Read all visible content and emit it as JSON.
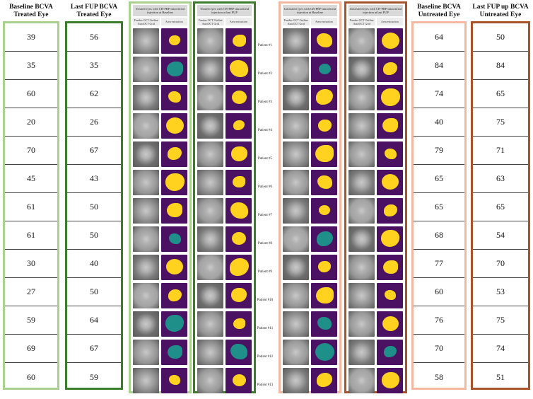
{
  "columns": {
    "baseline_treated": {
      "header_line1": "Baseline BCVA",
      "header_line2": "Treated Eye",
      "values": [
        "39",
        "35",
        "60",
        "20",
        "70",
        "45",
        "61",
        "61",
        "30",
        "27",
        "59",
        "69",
        "60"
      ]
    },
    "lastfup_treated": {
      "header_line1": "Last FUP BCVA",
      "header_line2": "Treated Eye",
      "values": [
        "56",
        "35",
        "62",
        "26",
        "67",
        "43",
        "50",
        "50",
        "40",
        "50",
        "64",
        "67",
        "59"
      ]
    },
    "baseline_untreated": {
      "header_line1": "Baseline BCVA",
      "header_line2": "Untreated Eye",
      "values": [
        "64",
        "84",
        "74",
        "40",
        "79",
        "65",
        "65",
        "68",
        "77",
        "60",
        "76",
        "70",
        "58"
      ]
    },
    "lastfup_untreated": {
      "header_line1": "Last FUP up BCVA",
      "header_line2": "Untreated Eye",
      "values": [
        "50",
        "84",
        "65",
        "75",
        "71",
        "63",
        "65",
        "54",
        "70",
        "53",
        "75",
        "74",
        "51"
      ]
    }
  },
  "image_panels": [
    {
      "title": "Treated eyes with CB-PRP intravitreal injection at Baseline",
      "sub_left": "Fundus OCT Outline AutoOCT Grid",
      "sub_right": "Area extraction",
      "border": "#a9d18e"
    },
    {
      "title": "Treated eyes with CB-PRP intravitreal injection at last FUP",
      "sub_left": "Fundus OCT Outline AutoOCT Grid",
      "sub_right": "Area extraction",
      "border": "#3a7d2a"
    },
    {
      "title": "Untreated eyes with CB-PRP intravitreal injection at Baseline",
      "sub_left": "Fundus OCT Outline AutoOCT Grid",
      "sub_right": "Area extraction",
      "border": "#f4b8a0"
    },
    {
      "title": "Untreated eyes with CB-PRP intravitreal injection at last FUP",
      "sub_left": "Fundus OCT Outline AutoOCT Grid",
      "sub_right": "Area extraction",
      "border": "#a9532a"
    }
  ],
  "patients": [
    "Patient #1",
    "Patient #2",
    "Patient #3",
    "Patient #4",
    "Patient #5",
    "Patient #6",
    "Patient #7",
    "Patient #8",
    "Patient #9",
    "Patient #10",
    "Patient #11",
    "Patient #12",
    "Patient #13"
  ],
  "mask_colors": {
    "background": "#4b1162",
    "lesion": "#ffd21f",
    "secondary": "#1f8f8a"
  }
}
